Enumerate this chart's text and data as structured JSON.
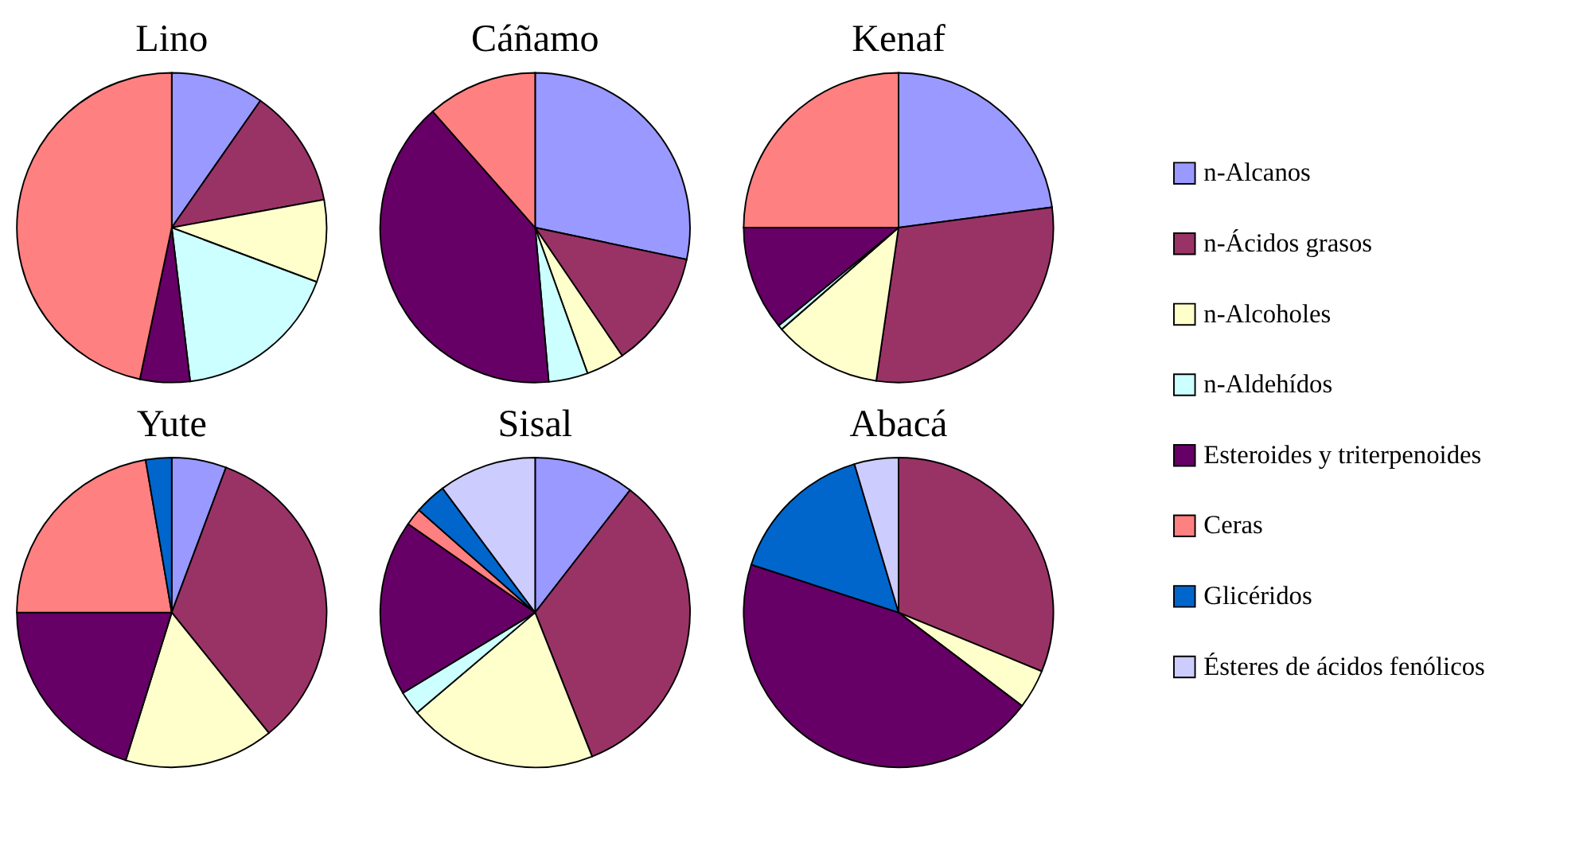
{
  "chart_data": [
    {
      "type": "pie",
      "title": "Lino",
      "categories": [
        "n-Alcanos",
        "n-Ácidos grasos",
        "n-Alcoholes",
        "n-Aldehídos",
        "Esteroides y triterpenoides",
        "Ceras",
        "Glicéridos",
        "Ésteres de ácidos fenólicos"
      ],
      "values": [
        9.7,
        12.4,
        8.6,
        17.4,
        5.2,
        46.7,
        null,
        null
      ],
      "colors": [
        "#9999ff",
        "#993366",
        "#ffffcc",
        "#ccffff",
        "#660066",
        "#ff8080",
        "#0066cc",
        "#ccccff"
      ],
      "legend": "right"
    },
    {
      "type": "pie",
      "title": "Cáñamo",
      "categories": [
        null,
        null,
        null,
        null,
        null,
        null,
        null,
        null
      ],
      "values": [
        28.3,
        12.2,
        4.0,
        4.1,
        39.9,
        11.5,
        null,
        null
      ],
      "colors": [
        "#9999ff",
        "#993366",
        "#ffffcc",
        "#ccffff",
        "#660066",
        "#ff8080",
        "#0066cc",
        "#ccccff"
      ]
    },
    {
      "type": "pie",
      "title": "Kenaf",
      "categories": [
        null,
        null,
        null,
        null,
        null,
        null,
        null,
        null
      ],
      "values": [
        22.9,
        29.4,
        11.3,
        0.5,
        10.9,
        25.0,
        null,
        null
      ],
      "colors": [
        "#9999ff",
        "#993366",
        "#ffffcc",
        "#ccffff",
        "#660066",
        "#ff8080",
        "#0066cc",
        "#ccccff"
      ]
    },
    {
      "type": "pie",
      "title": "Yute",
      "categories": [
        null,
        null,
        null,
        null,
        null,
        null,
        null,
        null
      ],
      "values": [
        5.7,
        33.5,
        15.6,
        null,
        20.2,
        22.3,
        2.7,
        null
      ],
      "colors": [
        "#9999ff",
        "#993366",
        "#ffffcc",
        "#ccffff",
        "#660066",
        "#ff8080",
        "#0066cc",
        "#ccccff"
      ]
    },
    {
      "type": "pie",
      "title": "Sisal",
      "categories": [
        null,
        null,
        null,
        null,
        null,
        null,
        null,
        null
      ],
      "values": [
        10.5,
        33.5,
        19.8,
        2.5,
        18.4,
        1.8,
        3.3,
        10.2
      ],
      "colors": [
        "#9999ff",
        "#993366",
        "#ffffcc",
        "#ccffff",
        "#660066",
        "#ff8080",
        "#0066cc",
        "#ccccff"
      ]
    },
    {
      "type": "pie",
      "title": "Abacá",
      "categories": [
        null,
        null,
        null,
        null,
        null,
        null,
        null,
        null
      ],
      "values": [
        null,
        31.2,
        4.1,
        null,
        44.7,
        null,
        15.4,
        4.6
      ],
      "colors": [
        "#9999ff",
        "#993366",
        "#ffffcc",
        "#ccffff",
        "#660066",
        "#ff8080",
        "#0066cc",
        "#ccccff"
      ]
    }
  ]
}
